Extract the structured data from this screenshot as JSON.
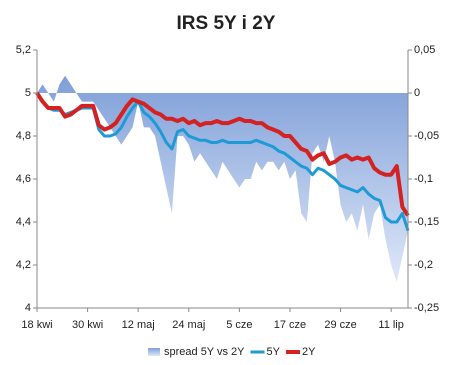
{
  "chart_data": {
    "type": "line",
    "title": "IRS 5Y i 2Y",
    "categories": [
      "18 kwi",
      null,
      null,
      null,
      null,
      null,
      null,
      null,
      null,
      "30 kwi",
      null,
      null,
      null,
      null,
      null,
      null,
      null,
      null,
      "12 maj",
      null,
      null,
      null,
      null,
      null,
      null,
      null,
      null,
      "24 maj",
      null,
      null,
      null,
      null,
      null,
      null,
      null,
      null,
      "5 cze",
      null,
      null,
      null,
      null,
      null,
      null,
      null,
      null,
      "17 cze",
      null,
      null,
      null,
      null,
      null,
      null,
      null,
      null,
      "29 cze",
      null,
      null,
      null,
      null,
      null,
      null,
      null,
      null,
      "11 lip",
      null,
      null,
      null
    ],
    "series": [
      {
        "name": "spread 5Y vs 2Y",
        "type": "area",
        "axis": "y2",
        "color": "#7f9fd8",
        "values": [
          0,
          0.01,
          0,
          -0.01,
          0.01,
          0.02,
          0.01,
          0,
          -0.01,
          -0.01,
          -0.01,
          -0.02,
          -0.03,
          -0.04,
          -0.05,
          -0.06,
          -0.05,
          -0.04,
          -0.01,
          -0.04,
          -0.04,
          -0.05,
          -0.08,
          -0.11,
          -0.14,
          -0.05,
          -0.05,
          -0.06,
          -0.08,
          -0.07,
          -0.08,
          -0.09,
          -0.1,
          -0.08,
          -0.09,
          -0.1,
          -0.11,
          -0.1,
          -0.1,
          -0.08,
          -0.09,
          -0.08,
          -0.08,
          -0.09,
          -0.08,
          -0.1,
          -0.09,
          -0.14,
          -0.15,
          -0.07,
          -0.06,
          -0.08,
          -0.05,
          -0.08,
          -0.13,
          -0.15,
          -0.14,
          -0.16,
          -0.13,
          -0.17,
          -0.14,
          -0.13,
          -0.17,
          -0.2,
          -0.22,
          -0.19,
          -0.16
        ]
      },
      {
        "name": "5Y",
        "type": "line",
        "color": "#1e9ad6",
        "values": [
          5.0,
          4.96,
          4.93,
          4.92,
          4.92,
          4.9,
          4.91,
          4.92,
          4.93,
          4.93,
          4.93,
          4.83,
          4.8,
          4.8,
          4.81,
          4.84,
          4.89,
          4.93,
          4.96,
          4.91,
          4.89,
          4.86,
          4.82,
          4.77,
          4.74,
          4.82,
          4.83,
          4.8,
          4.79,
          4.78,
          4.78,
          4.77,
          4.77,
          4.78,
          4.77,
          4.77,
          4.77,
          4.77,
          4.77,
          4.78,
          4.77,
          4.76,
          4.75,
          4.73,
          4.72,
          4.7,
          4.68,
          4.66,
          4.65,
          4.62,
          4.65,
          4.64,
          4.62,
          4.6,
          4.57,
          4.56,
          4.55,
          4.54,
          4.56,
          4.53,
          4.51,
          4.5,
          4.42,
          4.4,
          4.4,
          4.44,
          4.36
        ]
      },
      {
        "name": "2Y",
        "type": "line",
        "color": "#d42222",
        "values": [
          5.0,
          4.96,
          4.93,
          4.93,
          4.93,
          4.89,
          4.9,
          4.92,
          4.94,
          4.94,
          4.94,
          4.85,
          4.83,
          4.84,
          4.86,
          4.9,
          4.94,
          4.97,
          4.96,
          4.95,
          4.93,
          4.91,
          4.9,
          4.88,
          4.88,
          4.87,
          4.88,
          4.86,
          4.87,
          4.85,
          4.86,
          4.86,
          4.87,
          4.86,
          4.86,
          4.87,
          4.88,
          4.87,
          4.87,
          4.86,
          4.86,
          4.84,
          4.83,
          4.82,
          4.8,
          4.8,
          4.77,
          4.74,
          4.73,
          4.69,
          4.71,
          4.72,
          4.67,
          4.68,
          4.7,
          4.71,
          4.69,
          4.7,
          4.69,
          4.7,
          4.65,
          4.63,
          4.62,
          4.62,
          4.66,
          4.47,
          4.43
        ]
      }
    ],
    "ylim": [
      4,
      5.2
    ],
    "yticks": [
      4,
      {
        "value": 4.2,
        "label": "4,2"
      },
      {
        "value": 4.4,
        "label": "4,4"
      },
      {
        "value": 4.6,
        "label": "4,6"
      },
      {
        "value": 4.8,
        "label": "4,8"
      },
      5,
      {
        "value": 5.2,
        "label": "5,2"
      }
    ],
    "y2lim": [
      -0.25,
      0.05
    ],
    "y2ticks": [
      {
        "value": -0.25,
        "label": "-0,25"
      },
      {
        "value": -0.2,
        "label": "-0,2"
      },
      {
        "value": -0.15,
        "label": "-0,15"
      },
      {
        "value": -0.1,
        "label": "-0,1"
      },
      {
        "value": -0.05,
        "label": "-0,05"
      },
      0,
      {
        "value": 0.05,
        "label": "0,05"
      }
    ],
    "grid": false,
    "legend": "bottom"
  }
}
